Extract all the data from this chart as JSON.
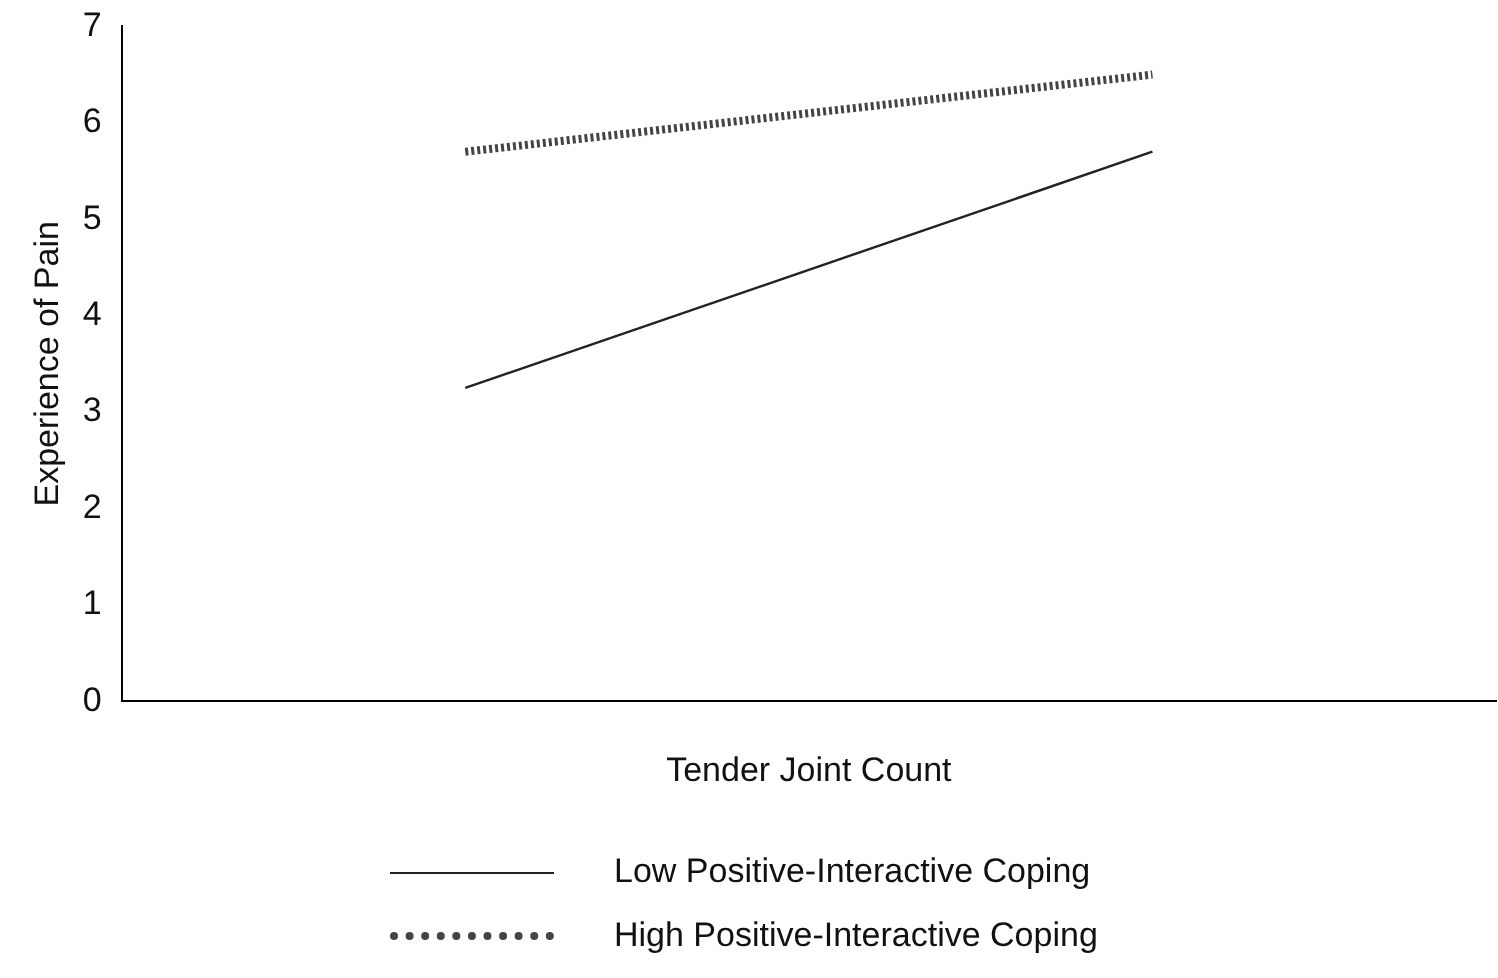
{
  "chart_data": {
    "type": "line",
    "xlabel": "Tender Joint Count",
    "ylabel": "Experience of Pain",
    "categories": [
      null,
      null
    ],
    "ylim": [
      0,
      7
    ],
    "yticks": [
      0,
      1,
      2,
      3,
      4,
      5,
      6,
      7
    ],
    "tick_labels": "y",
    "legend": "bottom",
    "marker": "none",
    "series": [
      {
        "name": "Low Positive-Interactive Coping",
        "color": "#222222",
        "values": [
          3.25,
          5.7
        ],
        "line_style": "solid"
      },
      {
        "name": "High Positive-Interactive Coping",
        "color": "#444444",
        "values": [
          5.7,
          6.5
        ],
        "line_style": "dotted"
      }
    ]
  }
}
